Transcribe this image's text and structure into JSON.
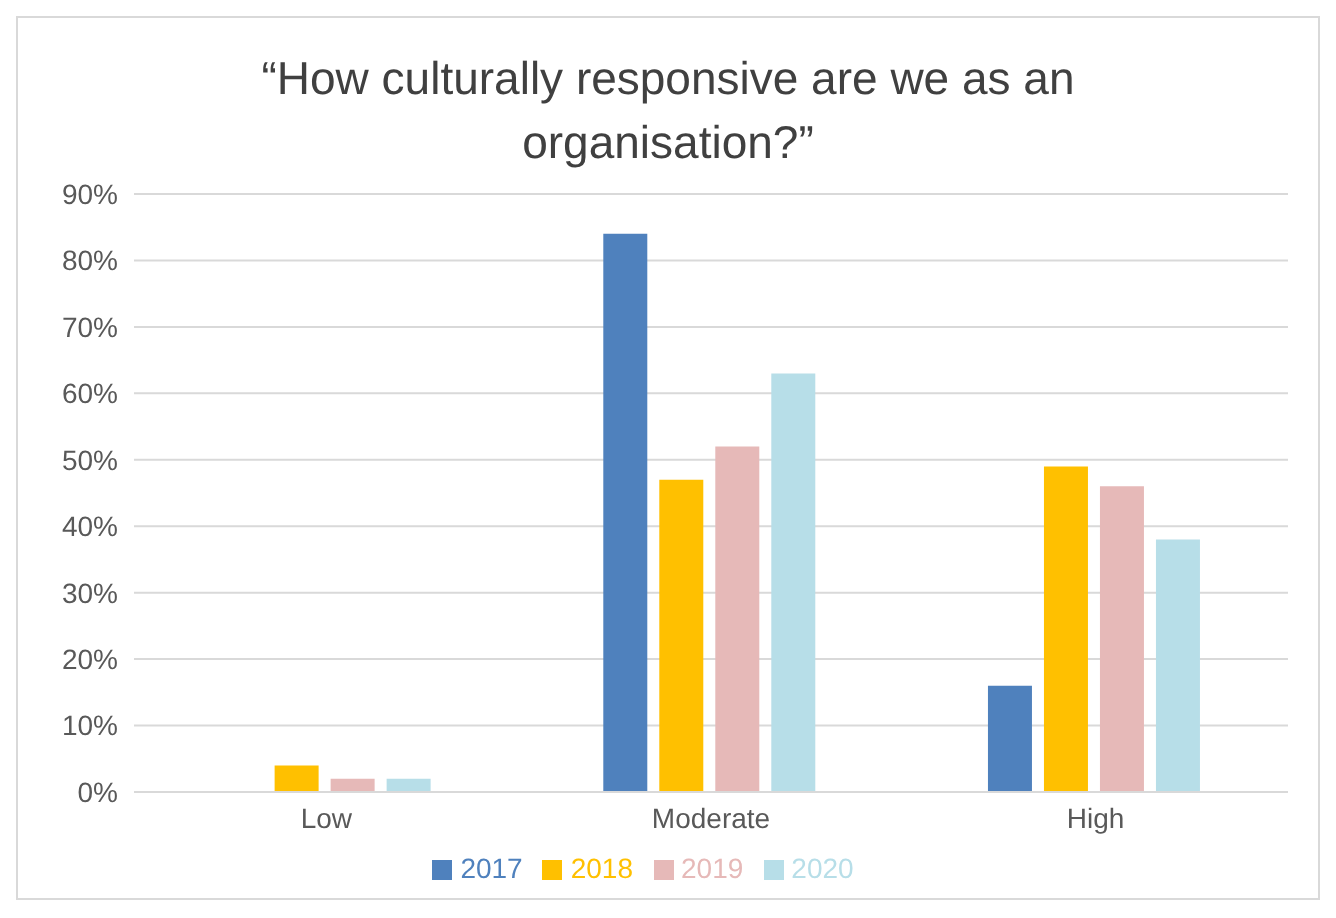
{
  "chart_data": {
    "type": "bar",
    "title": "“How culturally responsive are we as an organisation?”",
    "categories": [
      "Low",
      "Moderate",
      "High"
    ],
    "series": [
      {
        "name": "2017",
        "color": "#4f81bd",
        "values": [
          0,
          84,
          16
        ]
      },
      {
        "name": "2018",
        "color": "#ffc000",
        "values": [
          4,
          47,
          49
        ]
      },
      {
        "name": "2019",
        "color": "#e6b9b8",
        "values": [
          2,
          52,
          46
        ]
      },
      {
        "name": "2020",
        "color": "#b7dee8",
        "values": [
          2,
          63,
          38
        ]
      }
    ],
    "ylim": [
      0,
      90
    ],
    "yticks": [
      {
        "value": 0,
        "label": "0%"
      },
      {
        "value": 10,
        "label": "10%"
      },
      {
        "value": 20,
        "label": "20%"
      },
      {
        "value": 30,
        "label": "30%"
      },
      {
        "value": 40,
        "label": "40%"
      },
      {
        "value": 50,
        "label": "50%"
      },
      {
        "value": 60,
        "label": "60%"
      },
      {
        "value": 70,
        "label": "70%"
      },
      {
        "value": 80,
        "label": "80%"
      },
      {
        "value": 90,
        "label": "90%"
      }
    ],
    "grid": "y",
    "legend": "bottom"
  }
}
